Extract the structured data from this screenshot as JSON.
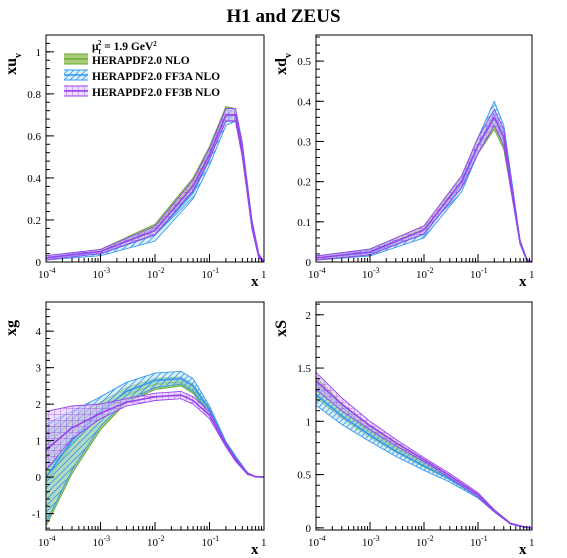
{
  "title": "H1 and ZEUS",
  "legend": {
    "scale": "μ²f = 1.9 GeV²",
    "entries": [
      {
        "label": "HERAPDF2.0 NLO",
        "color": "#66aa33",
        "fill": "#a8cc7a",
        "hatch": "none"
      },
      {
        "label": "HERAPDF2.0 FF3A NLO",
        "color": "#3399ee",
        "fill": "#bfe3f7",
        "hatch": "diag"
      },
      {
        "label": "HERAPDF2.0 FF3B NLO",
        "color": "#9944ee",
        "fill": "#dcc4fa",
        "hatch": "grid"
      }
    ]
  },
  "chart_data": [
    {
      "type": "area",
      "id": "xuv",
      "ylabel": "xu",
      "ylabel_sub": "v",
      "xlabel": "x",
      "xscale": "log",
      "xlim": [
        0.0001,
        1
      ],
      "ylim": [
        0,
        1.08
      ],
      "xticks": [
        "-4",
        "-3",
        "-2",
        "-1"
      ],
      "xticks_last": "1",
      "yticks": [
        0,
        0.2,
        0.4,
        0.6,
        0.8,
        1
      ],
      "x": [
        0.0001,
        0.001,
        0.01,
        0.05,
        0.1,
        0.2,
        0.3,
        0.4,
        0.6,
        0.8,
        1
      ],
      "series": [
        {
          "name": "HERAPDF2.0 NLO",
          "center": [
            0.02,
            0.05,
            0.16,
            0.37,
            0.52,
            0.71,
            0.7,
            0.53,
            0.18,
            0.03,
            0
          ],
          "lo": [
            0.01,
            0.04,
            0.13,
            0.34,
            0.5,
            0.67,
            0.67,
            0.5,
            0.16,
            0.02,
            0
          ],
          "hi": [
            0.03,
            0.06,
            0.18,
            0.4,
            0.55,
            0.74,
            0.73,
            0.56,
            0.2,
            0.04,
            0
          ]
        },
        {
          "name": "HERAPDF2.0 FF3A NLO",
          "center": [
            0.02,
            0.04,
            0.13,
            0.33,
            0.49,
            0.69,
            0.7,
            0.54,
            0.18,
            0.03,
            0
          ],
          "lo": [
            0.01,
            0.03,
            0.1,
            0.3,
            0.46,
            0.65,
            0.67,
            0.51,
            0.16,
            0.02,
            0
          ],
          "hi": [
            0.03,
            0.05,
            0.16,
            0.36,
            0.52,
            0.73,
            0.73,
            0.57,
            0.2,
            0.04,
            0
          ]
        },
        {
          "name": "HERAPDF2.0 FF3B NLO",
          "center": [
            0.02,
            0.05,
            0.15,
            0.36,
            0.51,
            0.7,
            0.7,
            0.53,
            0.18,
            0.03,
            0
          ],
          "lo": [
            0.01,
            0.04,
            0.13,
            0.34,
            0.49,
            0.67,
            0.67,
            0.5,
            0.16,
            0.02,
            0
          ],
          "hi": [
            0.03,
            0.06,
            0.17,
            0.39,
            0.54,
            0.73,
            0.73,
            0.56,
            0.2,
            0.04,
            0
          ]
        }
      ]
    },
    {
      "type": "area",
      "id": "xdv",
      "ylabel": "xd",
      "ylabel_sub": "v",
      "xlabel": "x",
      "xscale": "log",
      "xlim": [
        0.0001,
        1
      ],
      "ylim": [
        0,
        0.565
      ],
      "xticks": [
        "-4",
        "-3",
        "-2",
        "-1"
      ],
      "xticks_last": "1",
      "yticks": [
        0,
        0.1,
        0.2,
        0.3,
        0.4,
        0.5
      ],
      "x": [
        0.0001,
        0.001,
        0.01,
        0.05,
        0.1,
        0.2,
        0.3,
        0.4,
        0.6,
        0.8,
        1
      ],
      "series": [
        {
          "name": "HERAPDF2.0 NLO",
          "center": [
            0.01,
            0.025,
            0.08,
            0.2,
            0.29,
            0.35,
            0.3,
            0.2,
            0.05,
            0.005,
            0
          ],
          "lo": [
            0.005,
            0.018,
            0.07,
            0.185,
            0.27,
            0.33,
            0.28,
            0.185,
            0.045,
            0.003,
            0
          ],
          "hi": [
            0.015,
            0.032,
            0.09,
            0.215,
            0.31,
            0.37,
            0.32,
            0.215,
            0.055,
            0.007,
            0
          ]
        },
        {
          "name": "HERAPDF2.0 FF3A NLO",
          "center": [
            0.01,
            0.022,
            0.07,
            0.19,
            0.29,
            0.37,
            0.32,
            0.21,
            0.05,
            0.005,
            0
          ],
          "lo": [
            0.005,
            0.015,
            0.06,
            0.175,
            0.27,
            0.34,
            0.3,
            0.195,
            0.045,
            0.003,
            0
          ],
          "hi": [
            0.015,
            0.029,
            0.08,
            0.205,
            0.31,
            0.4,
            0.34,
            0.225,
            0.055,
            0.007,
            0
          ]
        },
        {
          "name": "HERAPDF2.0 FF3B NLO",
          "center": [
            0.01,
            0.025,
            0.08,
            0.2,
            0.29,
            0.36,
            0.31,
            0.2,
            0.05,
            0.005,
            0
          ],
          "lo": [
            0.005,
            0.018,
            0.07,
            0.185,
            0.27,
            0.34,
            0.29,
            0.185,
            0.045,
            0.003,
            0
          ],
          "hi": [
            0.015,
            0.032,
            0.09,
            0.215,
            0.31,
            0.38,
            0.33,
            0.215,
            0.055,
            0.007,
            0
          ]
        }
      ]
    },
    {
      "type": "area",
      "id": "xg",
      "ylabel": "xg",
      "ylabel_sub": "",
      "xlabel": "x",
      "xscale": "log",
      "xlim": [
        0.0001,
        1
      ],
      "ylim": [
        -1.45,
        4.8
      ],
      "xticks": [
        "-4",
        "-3",
        "-2",
        "-1"
      ],
      "xticks_last": "1",
      "yticks": [
        -1,
        0,
        1,
        2,
        3,
        4
      ],
      "x": [
        0.0001,
        0.0003,
        0.001,
        0.003,
        0.01,
        0.03,
        0.05,
        0.1,
        0.2,
        0.3,
        0.5,
        0.7,
        1
      ],
      "series": [
        {
          "name": "HERAPDF2.0 NLO",
          "center": [
            -0.1,
            0.9,
            1.7,
            2.25,
            2.55,
            2.6,
            2.4,
            1.8,
            0.9,
            0.5,
            0.1,
            0.01,
            0
          ],
          "lo": [
            -1.35,
            0.1,
            1.3,
            2.05,
            2.4,
            2.5,
            2.3,
            1.7,
            0.85,
            0.45,
            0.08,
            0.01,
            0
          ],
          "hi": [
            1.3,
            1.65,
            2.05,
            2.45,
            2.7,
            2.75,
            2.55,
            1.9,
            0.95,
            0.55,
            0.12,
            0.01,
            0
          ]
        },
        {
          "name": "HERAPDF2.0 FF3A NLO",
          "center": [
            0.0,
            1.0,
            1.8,
            2.35,
            2.65,
            2.7,
            2.5,
            1.85,
            0.92,
            0.52,
            0.1,
            0.01,
            0
          ],
          "lo": [
            -1.25,
            0.2,
            1.4,
            2.1,
            2.45,
            2.55,
            2.35,
            1.75,
            0.86,
            0.46,
            0.08,
            0.01,
            0
          ],
          "hi": [
            1.45,
            1.8,
            2.2,
            2.6,
            2.85,
            2.9,
            2.7,
            1.95,
            0.98,
            0.58,
            0.12,
            0.01,
            0
          ]
        },
        {
          "name": "HERAPDF2.0 FF3B NLO",
          "center": [
            0.75,
            1.35,
            1.75,
            2.05,
            2.2,
            2.25,
            2.1,
            1.7,
            0.88,
            0.48,
            0.09,
            0.01,
            0
          ],
          "lo": [
            0.2,
            1.05,
            1.6,
            1.95,
            2.1,
            2.15,
            2.0,
            1.6,
            0.83,
            0.43,
            0.07,
            0.01,
            0
          ],
          "hi": [
            1.8,
            1.95,
            2.0,
            2.15,
            2.3,
            2.35,
            2.2,
            1.8,
            0.93,
            0.53,
            0.11,
            0.01,
            0
          ]
        }
      ]
    },
    {
      "type": "area",
      "id": "xS",
      "ylabel": "xS",
      "ylabel_sub": "",
      "xlabel": "x",
      "xscale": "log",
      "xlim": [
        0.0001,
        1
      ],
      "ylim": [
        -0.02,
        2.12
      ],
      "xticks": [
        "-4",
        "-3",
        "-2",
        "-1"
      ],
      "xticks_last": "1",
      "yticks": [
        0,
        0.5,
        1,
        1.5,
        2
      ],
      "x": [
        0.0001,
        0.0003,
        0.001,
        0.003,
        0.01,
        0.03,
        0.1,
        0.2,
        0.4,
        0.7,
        1
      ],
      "series": [
        {
          "name": "HERAPDF2.0 NLO",
          "center": [
            1.32,
            1.1,
            0.9,
            0.75,
            0.6,
            0.47,
            0.3,
            0.16,
            0.04,
            0.01,
            0
          ],
          "lo": [
            1.22,
            1.03,
            0.85,
            0.71,
            0.57,
            0.45,
            0.28,
            0.15,
            0.035,
            0.008,
            0
          ],
          "hi": [
            1.42,
            1.17,
            0.95,
            0.79,
            0.63,
            0.49,
            0.32,
            0.17,
            0.045,
            0.012,
            0
          ]
        },
        {
          "name": "HERAPDF2.0 FF3A NLO",
          "center": [
            1.25,
            1.05,
            0.87,
            0.72,
            0.58,
            0.46,
            0.3,
            0.16,
            0.04,
            0.01,
            0
          ],
          "lo": [
            1.15,
            0.97,
            0.81,
            0.67,
            0.54,
            0.43,
            0.28,
            0.15,
            0.035,
            0.008,
            0
          ],
          "hi": [
            1.35,
            1.13,
            0.93,
            0.77,
            0.62,
            0.49,
            0.32,
            0.17,
            0.045,
            0.012,
            0
          ]
        },
        {
          "name": "HERAPDF2.0 FF3B NLO",
          "center": [
            1.38,
            1.16,
            0.96,
            0.8,
            0.64,
            0.49,
            0.31,
            0.16,
            0.04,
            0.01,
            0
          ],
          "lo": [
            1.3,
            1.1,
            0.92,
            0.77,
            0.62,
            0.47,
            0.29,
            0.15,
            0.035,
            0.008,
            0
          ],
          "hi": [
            1.46,
            1.22,
            1.0,
            0.83,
            0.66,
            0.51,
            0.33,
            0.17,
            0.045,
            0.012,
            0
          ]
        }
      ]
    }
  ]
}
